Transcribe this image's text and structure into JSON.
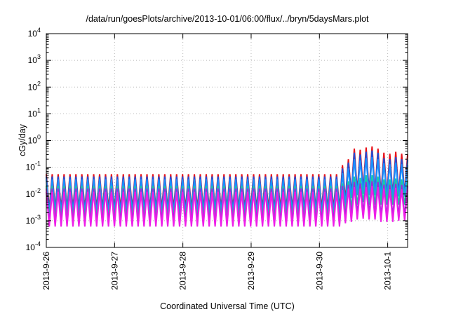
{
  "chart_data": {
    "type": "line",
    "title": "/data/run/goesPlots/archive/2013-10-01/06:00/flux/../bryn/5daysMars.plot",
    "xlabel": "Coordinated Universal Time (UTC)",
    "ylabel": "cGy/day",
    "yscale": "log",
    "ylim": [
      0.0001,
      10000
    ],
    "y_ticks": [
      {
        "value": 0.0001,
        "base": "10",
        "exp": "-4"
      },
      {
        "value": 0.001,
        "base": "10",
        "exp": "-3"
      },
      {
        "value": 0.01,
        "base": "10",
        "exp": "-2"
      },
      {
        "value": 0.1,
        "base": "10",
        "exp": "-1"
      },
      {
        "value": 1,
        "base": "10",
        "exp": "0"
      },
      {
        "value": 10,
        "base": "10",
        "exp": "1"
      },
      {
        "value": 100,
        "base": "10",
        "exp": "2"
      },
      {
        "value": 1000,
        "base": "10",
        "exp": "3"
      },
      {
        "value": 10000,
        "base": "10",
        "exp": "4"
      }
    ],
    "xlim": [
      "2013-09-26T00:00",
      "2013-10-01T07:00"
    ],
    "x_ticks": [
      {
        "value": "2013-09-26T00:00",
        "label": "2013-9-26"
      },
      {
        "value": "2013-09-27T00:00",
        "label": "2013-9-27"
      },
      {
        "value": "2013-09-28T00:00",
        "label": "2013-9-28"
      },
      {
        "value": "2013-09-29T00:00",
        "label": "2013-9-29"
      },
      {
        "value": "2013-09-30T00:00",
        "label": "2013-9-30"
      },
      {
        "value": "2013-10-01T00:00",
        "label": "2013-10-1"
      }
    ],
    "grid": true,
    "legend": "none",
    "series": [
      {
        "color": "#e8141c",
        "values": [
          0.055,
          0.0028,
          0.055,
          0.0028,
          0.055,
          0.0028,
          0.055,
          0.0028,
          0.055,
          0.0028,
          0.055,
          0.0028,
          0.055,
          0.0028,
          0.055,
          0.0028,
          0.055,
          0.0028,
          0.055,
          0.0028,
          0.055,
          0.0028,
          0.055,
          0.0028,
          0.055,
          0.0028,
          0.055,
          0.0028,
          0.055,
          0.0028,
          0.055,
          0.0028,
          0.055,
          0.0028,
          0.055,
          0.0028,
          0.055,
          0.0028,
          0.055,
          0.0028,
          0.055,
          0.0028,
          0.055,
          0.0028,
          0.055,
          0.0028,
          0.055,
          0.0028,
          0.055,
          0.0028,
          0.055,
          0.0028,
          0.055,
          0.0028,
          0.055,
          0.0028,
          0.055,
          0.0028,
          0.055,
          0.0028,
          0.055,
          0.0028,
          0.055,
          0.0028,
          0.055,
          0.0028,
          0.055,
          0.0028,
          0.055,
          0.0028,
          0.055,
          0.0028,
          0.055,
          0.0028,
          0.055,
          0.0028,
          0.055,
          0.0028,
          0.055,
          0.0028,
          0.055,
          0.0028,
          0.055,
          0.0028,
          0.055,
          0.0028,
          0.055,
          0.0028,
          0.055,
          0.0028,
          0.055,
          0.0028,
          0.055,
          0.0028,
          0.055,
          0.0028,
          0.055,
          0.0028,
          0.055,
          0.0028,
          0.12,
          0.006,
          0.2,
          0.01,
          0.5,
          0.012,
          0.45,
          0.015,
          0.55,
          0.012,
          0.6,
          0.012,
          0.5,
          0.01,
          0.35,
          0.009,
          0.32,
          0.009,
          0.38,
          0.01,
          0.32,
          0.01,
          0.3
        ]
      },
      {
        "color": "#1f4fd8",
        "values": [
          0.045,
          0.0022,
          0.045,
          0.0022,
          0.045,
          0.0022,
          0.045,
          0.0022,
          0.045,
          0.0022,
          0.045,
          0.0022,
          0.045,
          0.0022,
          0.045,
          0.0022,
          0.045,
          0.0022,
          0.045,
          0.0022,
          0.045,
          0.0022,
          0.045,
          0.0022,
          0.045,
          0.0022,
          0.045,
          0.0022,
          0.045,
          0.0022,
          0.045,
          0.0022,
          0.045,
          0.0022,
          0.045,
          0.0022,
          0.045,
          0.0022,
          0.045,
          0.0022,
          0.045,
          0.0022,
          0.045,
          0.0022,
          0.045,
          0.0022,
          0.045,
          0.0022,
          0.045,
          0.0022,
          0.045,
          0.0022,
          0.045,
          0.0022,
          0.045,
          0.0022,
          0.045,
          0.0022,
          0.045,
          0.0022,
          0.045,
          0.0022,
          0.045,
          0.0022,
          0.045,
          0.0022,
          0.045,
          0.0022,
          0.045,
          0.0022,
          0.045,
          0.0022,
          0.045,
          0.0022,
          0.045,
          0.0022,
          0.045,
          0.0022,
          0.045,
          0.0022,
          0.045,
          0.0022,
          0.045,
          0.0022,
          0.045,
          0.0022,
          0.045,
          0.0022,
          0.045,
          0.0022,
          0.045,
          0.0022,
          0.045,
          0.0022,
          0.045,
          0.0022,
          0.045,
          0.0022,
          0.045,
          0.0022,
          0.09,
          0.005,
          0.15,
          0.009,
          0.35,
          0.01,
          0.3,
          0.012,
          0.38,
          0.01,
          0.42,
          0.01,
          0.35,
          0.008,
          0.22,
          0.008,
          0.2,
          0.008,
          0.24,
          0.009,
          0.2,
          0.009,
          0.19
        ]
      },
      {
        "color": "#1a90ff",
        "values": [
          0.035,
          0.0018,
          0.035,
          0.0018,
          0.035,
          0.0018,
          0.035,
          0.0018,
          0.035,
          0.0018,
          0.035,
          0.0018,
          0.035,
          0.0018,
          0.035,
          0.0018,
          0.035,
          0.0018,
          0.035,
          0.0018,
          0.035,
          0.0018,
          0.035,
          0.0018,
          0.035,
          0.0018,
          0.035,
          0.0018,
          0.035,
          0.0018,
          0.035,
          0.0018,
          0.035,
          0.0018,
          0.035,
          0.0018,
          0.035,
          0.0018,
          0.035,
          0.0018,
          0.035,
          0.0018,
          0.035,
          0.0018,
          0.035,
          0.0018,
          0.035,
          0.0018,
          0.035,
          0.0018,
          0.035,
          0.0018,
          0.035,
          0.0018,
          0.035,
          0.0018,
          0.035,
          0.0018,
          0.035,
          0.0018,
          0.035,
          0.0018,
          0.035,
          0.0018,
          0.035,
          0.0018,
          0.035,
          0.0018,
          0.035,
          0.0018,
          0.035,
          0.0018,
          0.035,
          0.0018,
          0.035,
          0.0018,
          0.035,
          0.0018,
          0.035,
          0.0018,
          0.035,
          0.0018,
          0.035,
          0.0018,
          0.035,
          0.0018,
          0.035,
          0.0018,
          0.035,
          0.0018,
          0.035,
          0.0018,
          0.035,
          0.0018,
          0.035,
          0.0018,
          0.035,
          0.0018,
          0.035,
          0.0018,
          0.06,
          0.004,
          0.09,
          0.007,
          0.2,
          0.009,
          0.18,
          0.01,
          0.22,
          0.009,
          0.24,
          0.009,
          0.2,
          0.007,
          0.14,
          0.007,
          0.13,
          0.007,
          0.15,
          0.008,
          0.13,
          0.008,
          0.12
        ]
      },
      {
        "color": "#1fc8a0",
        "values": [
          0.02,
          0.0012,
          0.02,
          0.0012,
          0.02,
          0.0012,
          0.02,
          0.0012,
          0.02,
          0.0012,
          0.02,
          0.0012,
          0.02,
          0.0012,
          0.02,
          0.0012,
          0.02,
          0.0012,
          0.02,
          0.0012,
          0.02,
          0.0012,
          0.02,
          0.0012,
          0.02,
          0.0012,
          0.02,
          0.0012,
          0.02,
          0.0012,
          0.02,
          0.0012,
          0.02,
          0.0012,
          0.02,
          0.0012,
          0.02,
          0.0012,
          0.02,
          0.0012,
          0.02,
          0.0012,
          0.02,
          0.0012,
          0.02,
          0.0012,
          0.02,
          0.0012,
          0.02,
          0.0012,
          0.02,
          0.0012,
          0.02,
          0.0012,
          0.02,
          0.0012,
          0.02,
          0.0012,
          0.02,
          0.0012,
          0.02,
          0.0012,
          0.02,
          0.0012,
          0.02,
          0.0012,
          0.02,
          0.0012,
          0.02,
          0.0012,
          0.02,
          0.0012,
          0.02,
          0.0012,
          0.02,
          0.0012,
          0.02,
          0.0012,
          0.02,
          0.0012,
          0.02,
          0.0012,
          0.02,
          0.0012,
          0.02,
          0.0012,
          0.02,
          0.0012,
          0.02,
          0.0012,
          0.02,
          0.0012,
          0.02,
          0.0012,
          0.02,
          0.0012,
          0.02,
          0.0012,
          0.02,
          0.0012,
          0.025,
          0.002,
          0.03,
          0.003,
          0.045,
          0.004,
          0.04,
          0.005,
          0.05,
          0.004,
          0.05,
          0.004,
          0.045,
          0.004,
          0.035,
          0.004,
          0.035,
          0.004,
          0.038,
          0.004,
          0.035,
          0.004,
          0.032
        ]
      },
      {
        "color": "#9b2bd8",
        "values": [
          0.016,
          0.0009,
          0.016,
          0.0009,
          0.016,
          0.0009,
          0.016,
          0.0009,
          0.016,
          0.0009,
          0.016,
          0.0009,
          0.016,
          0.0009,
          0.016,
          0.0009,
          0.016,
          0.0009,
          0.016,
          0.0009,
          0.016,
          0.0009,
          0.016,
          0.0009,
          0.016,
          0.0009,
          0.016,
          0.0009,
          0.016,
          0.0009,
          0.016,
          0.0009,
          0.016,
          0.0009,
          0.016,
          0.0009,
          0.016,
          0.0009,
          0.016,
          0.0009,
          0.016,
          0.0009,
          0.016,
          0.0009,
          0.016,
          0.0009,
          0.016,
          0.0009,
          0.016,
          0.0009,
          0.016,
          0.0009,
          0.016,
          0.0009,
          0.016,
          0.0009,
          0.016,
          0.0009,
          0.016,
          0.0009,
          0.016,
          0.0009,
          0.016,
          0.0009,
          0.016,
          0.0009,
          0.016,
          0.0009,
          0.016,
          0.0009,
          0.016,
          0.0009,
          0.016,
          0.0009,
          0.016,
          0.0009,
          0.016,
          0.0009,
          0.016,
          0.0009,
          0.016,
          0.0009,
          0.016,
          0.0009,
          0.016,
          0.0009,
          0.016,
          0.0009,
          0.016,
          0.0009,
          0.016,
          0.0009,
          0.016,
          0.0009,
          0.016,
          0.0009,
          0.016,
          0.0009,
          0.016,
          0.0009,
          0.02,
          0.0012,
          0.022,
          0.0015,
          0.028,
          0.0018,
          0.025,
          0.002,
          0.028,
          0.0018,
          0.03,
          0.0018,
          0.028,
          0.0015,
          0.022,
          0.0015,
          0.022,
          0.0015,
          0.024,
          0.0015,
          0.022,
          0.0015,
          0.02
        ]
      },
      {
        "color": "#ee1ee8",
        "values": [
          0.012,
          0.0006,
          0.012,
          0.0006,
          0.012,
          0.0006,
          0.012,
          0.0006,
          0.012,
          0.0006,
          0.012,
          0.0006,
          0.012,
          0.0006,
          0.012,
          0.0006,
          0.012,
          0.0006,
          0.012,
          0.0006,
          0.012,
          0.0006,
          0.012,
          0.0006,
          0.012,
          0.0006,
          0.012,
          0.0006,
          0.012,
          0.0006,
          0.012,
          0.0006,
          0.012,
          0.0006,
          0.012,
          0.0006,
          0.012,
          0.0006,
          0.012,
          0.0006,
          0.012,
          0.0006,
          0.012,
          0.0006,
          0.012,
          0.0006,
          0.012,
          0.0006,
          0.012,
          0.0006,
          0.012,
          0.0006,
          0.012,
          0.0006,
          0.012,
          0.0006,
          0.012,
          0.0006,
          0.012,
          0.0006,
          0.012,
          0.0006,
          0.012,
          0.0006,
          0.012,
          0.0006,
          0.012,
          0.0006,
          0.012,
          0.0006,
          0.012,
          0.0006,
          0.012,
          0.0006,
          0.012,
          0.0006,
          0.012,
          0.0006,
          0.012,
          0.0006,
          0.012,
          0.0006,
          0.012,
          0.0006,
          0.012,
          0.0006,
          0.012,
          0.0006,
          0.012,
          0.0006,
          0.012,
          0.0006,
          0.012,
          0.0006,
          0.012,
          0.0006,
          0.012,
          0.0006,
          0.012,
          0.0006,
          0.014,
          0.0008,
          0.016,
          0.0009,
          0.018,
          0.0011,
          0.016,
          0.0012,
          0.018,
          0.0011,
          0.02,
          0.0011,
          0.018,
          0.0009,
          0.016,
          0.0009,
          0.015,
          0.0009,
          0.017,
          0.001,
          0.015,
          0.001,
          0.014
        ]
      }
    ]
  }
}
